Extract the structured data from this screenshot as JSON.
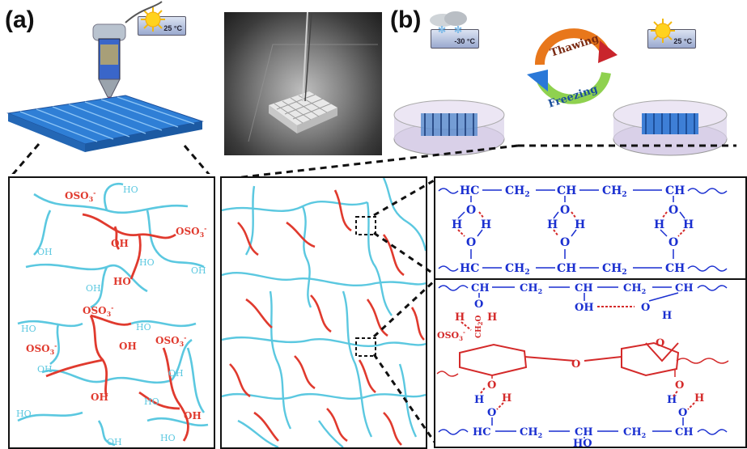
{
  "panel_a": {
    "label": "(a)",
    "temperature": "25 °C"
  },
  "panel_b": {
    "label": "(b)",
    "temp_cold": "-30 °C",
    "temp_warm": "25 °C",
    "cycle_thawing": "Thawing",
    "cycle_freezing": "Freezing"
  },
  "network_labels": {
    "oso3": "OSO",
    "oso3_sub": "3",
    "oso3_sup": "-",
    "oh": "OH",
    "ho": "HO"
  },
  "chem": {
    "hc": "HC",
    "ch": "CH",
    "ch2": "CH",
    "sub2": "2",
    "o": "O",
    "h": "H",
    "oh": "OH",
    "ho": "HO",
    "oso3": "OSO",
    "ch2o": "CH",
    "ch2o_o": "O"
  },
  "colors": {
    "pva": "#5bc8e0",
    "carrageenan": "#e03a2e",
    "chem_blue": "#1a2fd0",
    "chem_red": "#d42a2a"
  }
}
